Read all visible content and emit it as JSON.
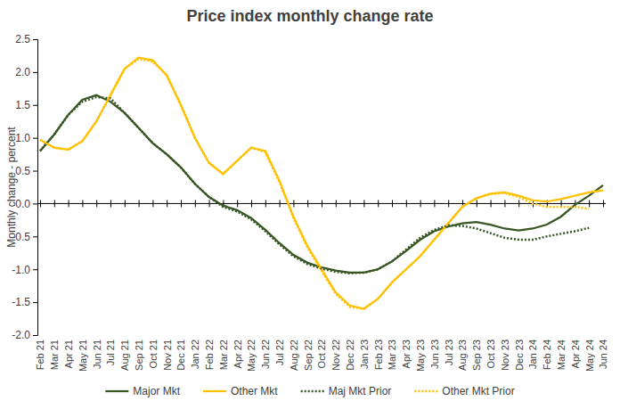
{
  "chart_data": {
    "type": "line",
    "title": "Price index monthly change rate",
    "y_label": "Monthly change - percent",
    "categories": [
      "Feb 21",
      "Mar 21",
      "Apr 21",
      "May 21",
      "Jun 21",
      "Jul 21",
      "Aug 21",
      "Sep 21",
      "Oct 21",
      "Nov 21",
      "Dec 21",
      "Jan 22",
      "Feb 22",
      "Mar 22",
      "Apr 22",
      "May 22",
      "Jun 22",
      "Jul 22",
      "Aug 22",
      "Sep 22",
      "Oct 22",
      "Nov 22",
      "Dec 22",
      "Jan 23",
      "Feb 23",
      "Mar 23",
      "Apr 23",
      "May 23",
      "Jun 23",
      "Jul 23",
      "Aug 23",
      "Sep 23",
      "Oct 23",
      "Nov 23",
      "Dec 23",
      "Jan 24",
      "Feb 24",
      "Mar 24",
      "Apr 24",
      "May 24",
      "Jun 24"
    ],
    "series": [
      {
        "name": "Major Mkt",
        "color": "#375623",
        "line_style": "solid",
        "values": [
          0.8,
          1.05,
          1.35,
          1.58,
          1.65,
          1.55,
          1.38,
          1.15,
          0.92,
          0.75,
          0.55,
          0.3,
          0.1,
          -0.03,
          -0.1,
          -0.22,
          -0.4,
          -0.6,
          -0.78,
          -0.9,
          -0.97,
          -1.02,
          -1.05,
          -1.05,
          -1.0,
          -0.88,
          -0.72,
          -0.55,
          -0.42,
          -0.35,
          -0.3,
          -0.28,
          -0.32,
          -0.38,
          -0.41,
          -0.38,
          -0.32,
          -0.2,
          -0.02,
          0.12,
          0.28
        ]
      },
      {
        "name": "Other Mkt",
        "color": "#ffc000",
        "line_style": "solid",
        "values": [
          0.97,
          0.85,
          0.82,
          0.95,
          1.25,
          1.65,
          2.05,
          2.22,
          2.18,
          1.95,
          1.5,
          1.0,
          0.62,
          0.45,
          0.65,
          0.85,
          0.8,
          0.35,
          -0.2,
          -0.65,
          -1.0,
          -1.35,
          -1.55,
          -1.6,
          -1.45,
          -1.2,
          -1.0,
          -0.8,
          -0.55,
          -0.3,
          -0.05,
          0.08,
          0.15,
          0.17,
          0.12,
          0.05,
          0.03,
          0.07,
          0.12,
          0.17,
          0.2
        ]
      },
      {
        "name": "Maj Mkt Prior",
        "color": "#375623",
        "line_style": "dotted",
        "values": [
          0.8,
          1.05,
          1.35,
          1.55,
          1.62,
          1.6,
          1.38,
          1.15,
          0.92,
          0.75,
          0.55,
          0.3,
          0.1,
          -0.05,
          -0.12,
          -0.24,
          -0.42,
          -0.62,
          -0.8,
          -0.92,
          -0.99,
          -1.04,
          -1.06,
          -1.05,
          -1.0,
          -0.88,
          -0.7,
          -0.52,
          -0.4,
          -0.33,
          -0.34,
          -0.38,
          -0.45,
          -0.52,
          -0.55,
          -0.55,
          -0.5,
          -0.46,
          -0.42,
          -0.37,
          null
        ]
      },
      {
        "name": "Other Mkt Prior",
        "color": "#ffc000",
        "line_style": "dotted",
        "values": [
          0.97,
          0.85,
          0.82,
          0.95,
          1.25,
          1.65,
          2.05,
          2.2,
          2.16,
          1.95,
          1.5,
          1.0,
          0.62,
          0.45,
          0.65,
          0.85,
          0.78,
          0.33,
          -0.22,
          -0.67,
          -1.02,
          -1.37,
          -1.57,
          -1.6,
          -1.45,
          -1.2,
          -1.0,
          -0.8,
          -0.55,
          -0.3,
          -0.05,
          0.08,
          0.15,
          0.16,
          0.1,
          0.0,
          -0.05,
          -0.05,
          -0.05,
          -0.08,
          null
        ]
      }
    ],
    "ylim": [
      -2.0,
      2.5
    ],
    "yticks": [
      {
        "value": -2,
        "label": "-2.0"
      },
      -1.5,
      {
        "value": -1,
        "label": "-1.0"
      },
      -0.5,
      {
        "value": 0,
        "label": "0.0"
      },
      0.5,
      {
        "value": 1,
        "label": "1.0"
      },
      1.5,
      {
        "value": 2,
        "label": "2.0"
      },
      2.5
    ],
    "grid": false,
    "legend": "bottom"
  }
}
